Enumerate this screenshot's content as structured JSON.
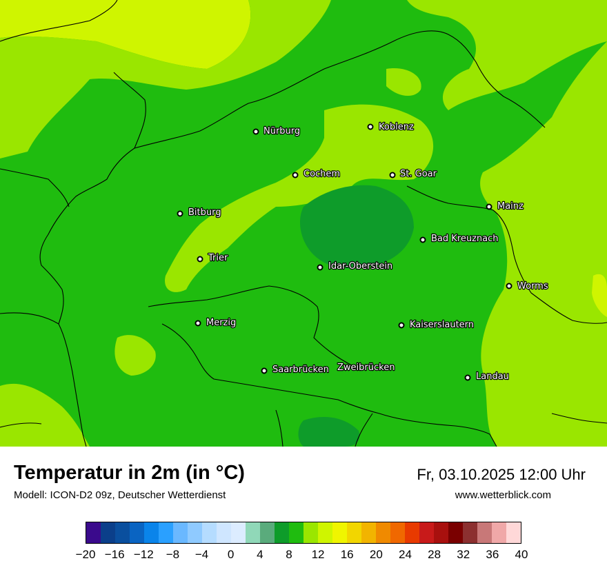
{
  "map": {
    "cities": [
      {
        "name": "Nürburg"
      },
      {
        "name": "Koblenz"
      },
      {
        "name": "Cochem"
      },
      {
        "name": "St. Goar"
      },
      {
        "name": "Mainz"
      },
      {
        "name": "Bitburg"
      },
      {
        "name": "Bad Kreuznach"
      },
      {
        "name": "Trier"
      },
      {
        "name": "Idar-Oberstein"
      },
      {
        "name": "Worms"
      },
      {
        "name": "Merzig"
      },
      {
        "name": "Kaiserslautern"
      },
      {
        "name": "Saarbrücken"
      },
      {
        "name": "Zweibrücken"
      },
      {
        "name": "Landau"
      }
    ],
    "colors": {
      "temp_8_10": "#0e9c2a",
      "temp_10_12": "#1fbc0f",
      "temp_12_14": "#9ae600",
      "temp_14_16": "#cff500",
      "border": "#000000"
    }
  },
  "legend": {
    "title": "Temperatur in 2m (in °C)",
    "model": "Modell: ICON-D2 09z, Deutscher Wetterdienst",
    "datetime": "Fr, 03.10.2025 12:00 Uhr",
    "website": "www.wetterblick.com",
    "tick_labels": [
      "−20",
      "−16",
      "−12",
      "−8",
      "−4",
      "0",
      "4",
      "8",
      "12",
      "16",
      "20",
      "24",
      "28",
      "32",
      "36",
      "40"
    ],
    "colorbar": [
      "#3a0a8c",
      "#0b3f8a",
      "#0a4f9e",
      "#0a64c2",
      "#0a84ea",
      "#2aa0ff",
      "#6ab8ff",
      "#8fcaff",
      "#b5dcff",
      "#cfe6ff",
      "#dcecff",
      "#90d8b8",
      "#5aab7c",
      "#0e9c2a",
      "#1fbc0f",
      "#9ae600",
      "#cff500",
      "#f0f500",
      "#f2d600",
      "#f2b400",
      "#f08a00",
      "#f06800",
      "#e83a00",
      "#c81a1a",
      "#a8100e",
      "#7a0000",
      "#8c3030",
      "#c87878",
      "#f0a8a8",
      "#ffd8d8"
    ]
  }
}
